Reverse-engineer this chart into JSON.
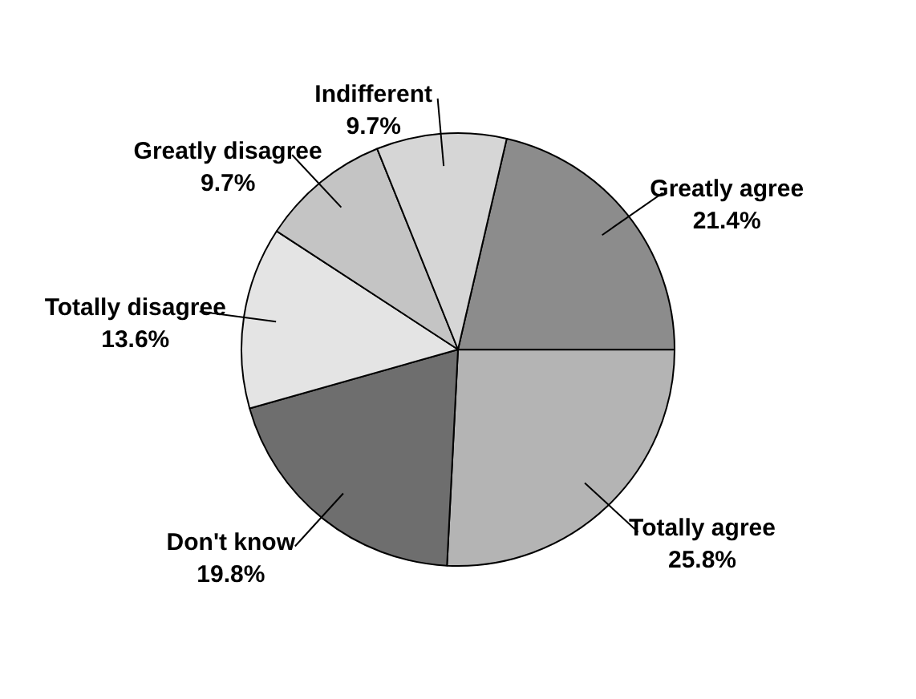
{
  "chart_data": {
    "type": "pie",
    "categories": [
      "Greatly agree",
      "Totally agree",
      "Don't know",
      "Totally disagree",
      "Greatly disagree",
      "Indifferent"
    ],
    "values": [
      21.4,
      25.8,
      19.8,
      13.6,
      9.7,
      9.7
    ],
    "value_labels": [
      "21.4%",
      "25.8%",
      "19.8%",
      "13.6%",
      "9.7%",
      "9.7%"
    ],
    "colors": [
      "#8c8c8c",
      "#b4b4b4",
      "#6e6e6e",
      "#e4e4e4",
      "#c4c4c4",
      "#d6d6d6"
    ],
    "legend": false
  }
}
